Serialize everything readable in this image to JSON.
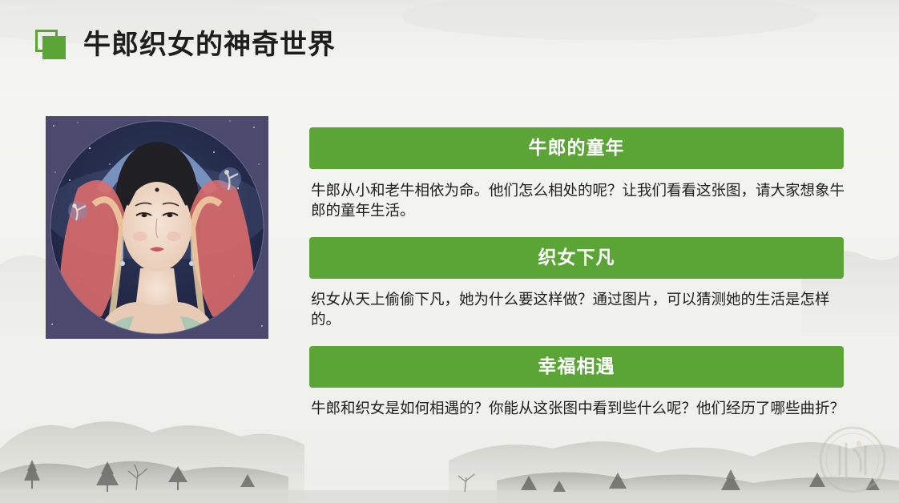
{
  "page": {
    "title": "牛郎织女的神奇世界"
  },
  "colors": {
    "accent": "#5aa536",
    "text": "#1e1e1e",
    "header_text": "#ffffff"
  },
  "image": {
    "alt": "illustration-weaver-girl-portrait"
  },
  "sections": [
    {
      "heading": "牛郎的童年",
      "text": "牛郎从小和老牛相依为命。他们怎么相处的呢？让我们看看这张图，请大家想象牛郎的童年生活。"
    },
    {
      "heading": "织女下凡",
      "text": "织女从天上偷偷下凡，她为什么要这样做？通过图片，可以猜测她的生活是怎样的。"
    },
    {
      "heading": "幸福相遇",
      "text": "牛郎和织女是如何相遇的？你能从这张图中看到些什么呢？他们经历了哪些曲折？"
    }
  ]
}
